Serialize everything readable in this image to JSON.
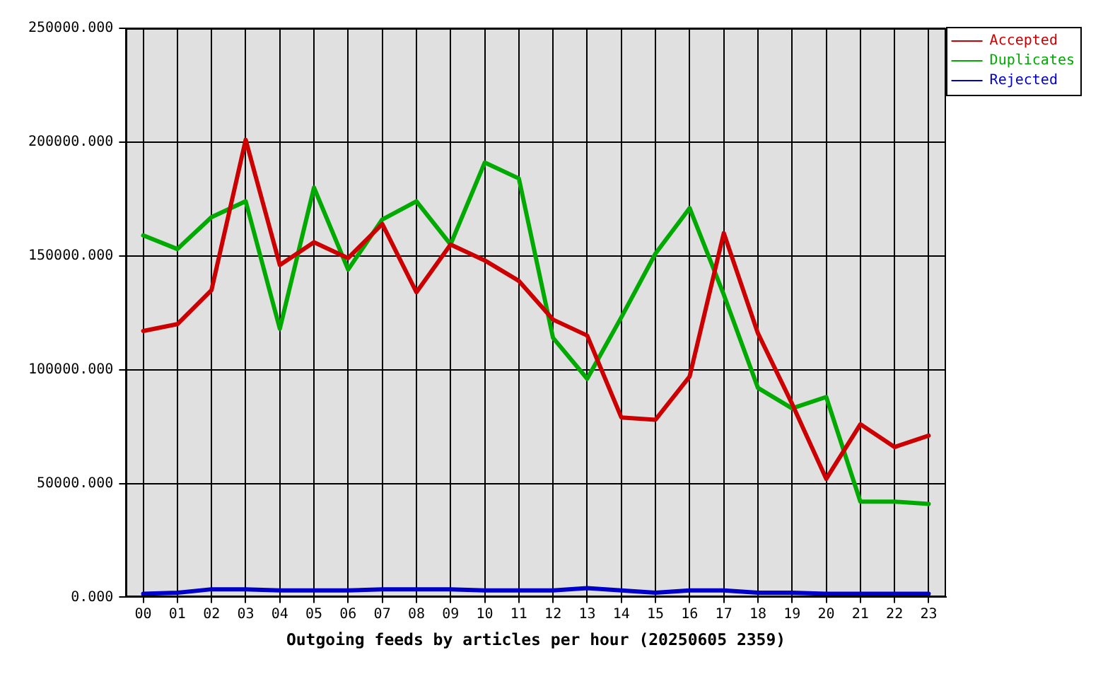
{
  "chart_data": {
    "type": "line",
    "xlabel": "Outgoing feeds by articles per hour (20250605 2359)",
    "categories": [
      "00",
      "01",
      "02",
      "03",
      "04",
      "05",
      "06",
      "07",
      "08",
      "09",
      "10",
      "11",
      "12",
      "13",
      "14",
      "15",
      "16",
      "17",
      "18",
      "19",
      "20",
      "21",
      "22",
      "23"
    ],
    "series": [
      {
        "name": "Accepted",
        "color": "#cc0000",
        "values": [
          117000,
          120000,
          135000,
          201000,
          146000,
          156000,
          149000,
          164000,
          134000,
          155000,
          148000,
          139000,
          122000,
          115000,
          79000,
          78000,
          97000,
          160000,
          116000,
          85000,
          52000,
          76000,
          66000,
          71000
        ]
      },
      {
        "name": "Duplicates",
        "color": "#00aa00",
        "values": [
          159000,
          153000,
          167000,
          174000,
          118000,
          180000,
          144000,
          166000,
          174000,
          155000,
          191000,
          184000,
          114000,
          96000,
          123000,
          151000,
          171000,
          133000,
          92000,
          83000,
          88000,
          42000,
          42000,
          41000
        ]
      },
      {
        "name": "Rejected",
        "color": "#0000cc",
        "values": [
          1500,
          2000,
          3500,
          3500,
          3000,
          3000,
          3000,
          3500,
          3500,
          3500,
          3000,
          3000,
          3000,
          4000,
          3000,
          2000,
          3000,
          3000,
          2000,
          2000,
          1500,
          1500,
          1500,
          1500
        ]
      }
    ],
    "ylim": [
      0,
      250000
    ],
    "yticks": [
      {
        "value": 0,
        "label": "0.000"
      },
      {
        "value": 50000,
        "label": "50000.000"
      },
      {
        "value": 100000,
        "label": "100000.000"
      },
      {
        "value": 150000,
        "label": "150000.000"
      },
      {
        "value": 200000,
        "label": "200000.000"
      },
      {
        "value": 250000,
        "label": "250000.000"
      }
    ],
    "grid": true,
    "legend": "top right",
    "line_style": "solid"
  }
}
